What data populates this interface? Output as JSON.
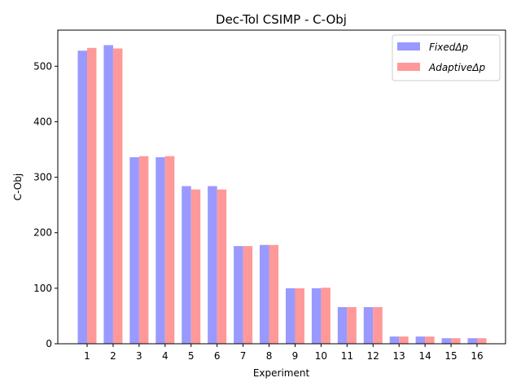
{
  "chart_data": {
    "type": "bar",
    "title": "Dec-Tol CSIMP - C-Obj",
    "xlabel": "Experiment",
    "ylabel": "C-Obj",
    "categories": [
      "1",
      "2",
      "3",
      "4",
      "5",
      "6",
      "7",
      "8",
      "9",
      "10",
      "11",
      "12",
      "13",
      "14",
      "15",
      "16"
    ],
    "ylim": [
      0,
      565
    ],
    "yticks": [
      0,
      100,
      200,
      300,
      400,
      500
    ],
    "grid": false,
    "legend_position": "top-right",
    "series": [
      {
        "name": "FixedΔp",
        "color": "#9999ff",
        "values": [
          528,
          538,
          336,
          336,
          284,
          284,
          176,
          178,
          100,
          100,
          66,
          66,
          13,
          13,
          10,
          10
        ]
      },
      {
        "name": "AdaptiveΔp",
        "color": "#ff9999",
        "values": [
          533,
          532,
          338,
          338,
          278,
          278,
          176,
          178,
          100,
          101,
          66,
          66,
          13,
          13,
          10,
          10
        ]
      }
    ]
  }
}
